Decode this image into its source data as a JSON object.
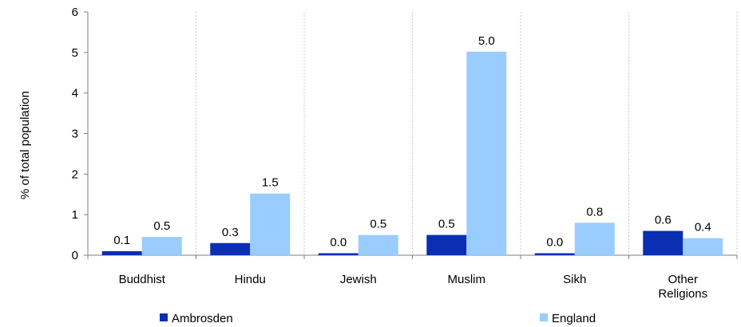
{
  "chart_data": {
    "type": "bar",
    "categories": [
      "Buddhist",
      "Hindu",
      "Jewish",
      "Muslim",
      "Sikh",
      "Other Religions"
    ],
    "category_lines": [
      [
        "Buddhist"
      ],
      [
        "Hindu"
      ],
      [
        "Jewish"
      ],
      [
        "Muslim"
      ],
      [
        "Sikh"
      ],
      [
        "Other",
        "Religions"
      ]
    ],
    "series": [
      {
        "name": "Ambrosden",
        "color": "#0a2fb4",
        "values": [
          0.1,
          0.3,
          0.0,
          0.5,
          0.0,
          0.6
        ],
        "labels": [
          "0.1",
          "0.3",
          "0.0",
          "0.5",
          "0.0",
          "0.6"
        ]
      },
      {
        "name": "England",
        "color": "#99ccff",
        "values": [
          0.45,
          1.52,
          0.5,
          5.02,
          0.8,
          0.42
        ],
        "labels": [
          "0.5",
          "1.5",
          "0.5",
          "5.0",
          "0.8",
          "0.4"
        ]
      }
    ],
    "ylabel": "% of total population",
    "xlabel": "",
    "ylim": [
      0,
      6
    ],
    "yticks": [
      0,
      1,
      2,
      3,
      4,
      5,
      6
    ],
    "grid": "vertical-dotted",
    "legend": "bottom"
  }
}
